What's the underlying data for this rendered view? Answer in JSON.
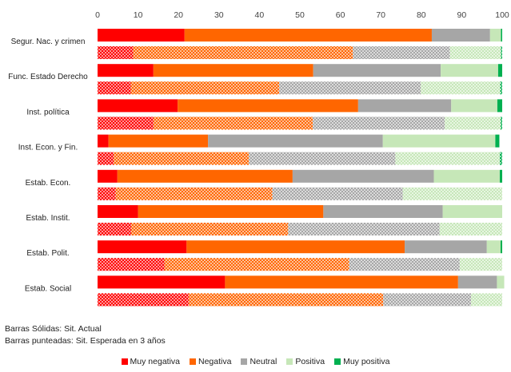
{
  "chart_data": {
    "type": "bar",
    "orientation": "horizontal",
    "stacked": true,
    "xlim": [
      0,
      100
    ],
    "xticks": [
      0,
      10,
      20,
      30,
      40,
      50,
      60,
      70,
      80,
      90,
      100
    ],
    "grid": false,
    "legend_position": "bottom",
    "categories": [
      "Segur. Nac. y crimen",
      "Func. Estado Derecho",
      "Inst. política",
      "Inst. Econ. y Fin.",
      "Estab. Econ.",
      "Estab. Instit.",
      "Estab. Polit.",
      "Estab. Social"
    ],
    "series": [
      {
        "name": "Muy negativa",
        "color": "#ff0000",
        "actual": [
          21.5,
          13.8,
          19.8,
          2.7,
          4.9,
          10.0,
          22.0,
          31.5
        ],
        "expected": [
          8.8,
          8.2,
          13.8,
          4.0,
          4.5,
          8.3,
          16.5,
          22.5
        ]
      },
      {
        "name": "Negativa",
        "color": "#ff6600",
        "actual": [
          61.1,
          39.5,
          44.6,
          24.6,
          43.3,
          45.8,
          53.9,
          57.6
        ],
        "expected": [
          54.3,
          36.7,
          39.4,
          33.4,
          38.7,
          38.8,
          45.7,
          48.1
        ]
      },
      {
        "name": "Neutral",
        "color": "#a6a6a6",
        "actual": [
          14.4,
          31.5,
          23.0,
          43.2,
          34.9,
          29.5,
          20.3,
          9.6
        ],
        "expected": [
          24.0,
          35.0,
          32.6,
          36.2,
          32.2,
          37.4,
          27.3,
          21.7
        ]
      },
      {
        "name": "Positiva",
        "color": "#c6e7b8",
        "actual": [
          2.7,
          14.2,
          11.4,
          27.8,
          16.3,
          14.7,
          3.4,
          1.8
        ],
        "expected": [
          12.6,
          19.6,
          13.8,
          25.8,
          24.6,
          15.5,
          10.5,
          7.7
        ]
      },
      {
        "name": "Muy positiva",
        "color": "#00b050",
        "actual": [
          0.3,
          1.0,
          1.2,
          1.0,
          0.6,
          0.0,
          0.4,
          0.0
        ],
        "expected": [
          0.3,
          0.5,
          0.4,
          0.6,
          0.0,
          0.0,
          0.0,
          0.0
        ]
      }
    ]
  },
  "notes": {
    "solid": "Barras Sólidas: Sit. Actual",
    "dotted": "Barras punteadas: Sit. Esperada en 3 años"
  }
}
